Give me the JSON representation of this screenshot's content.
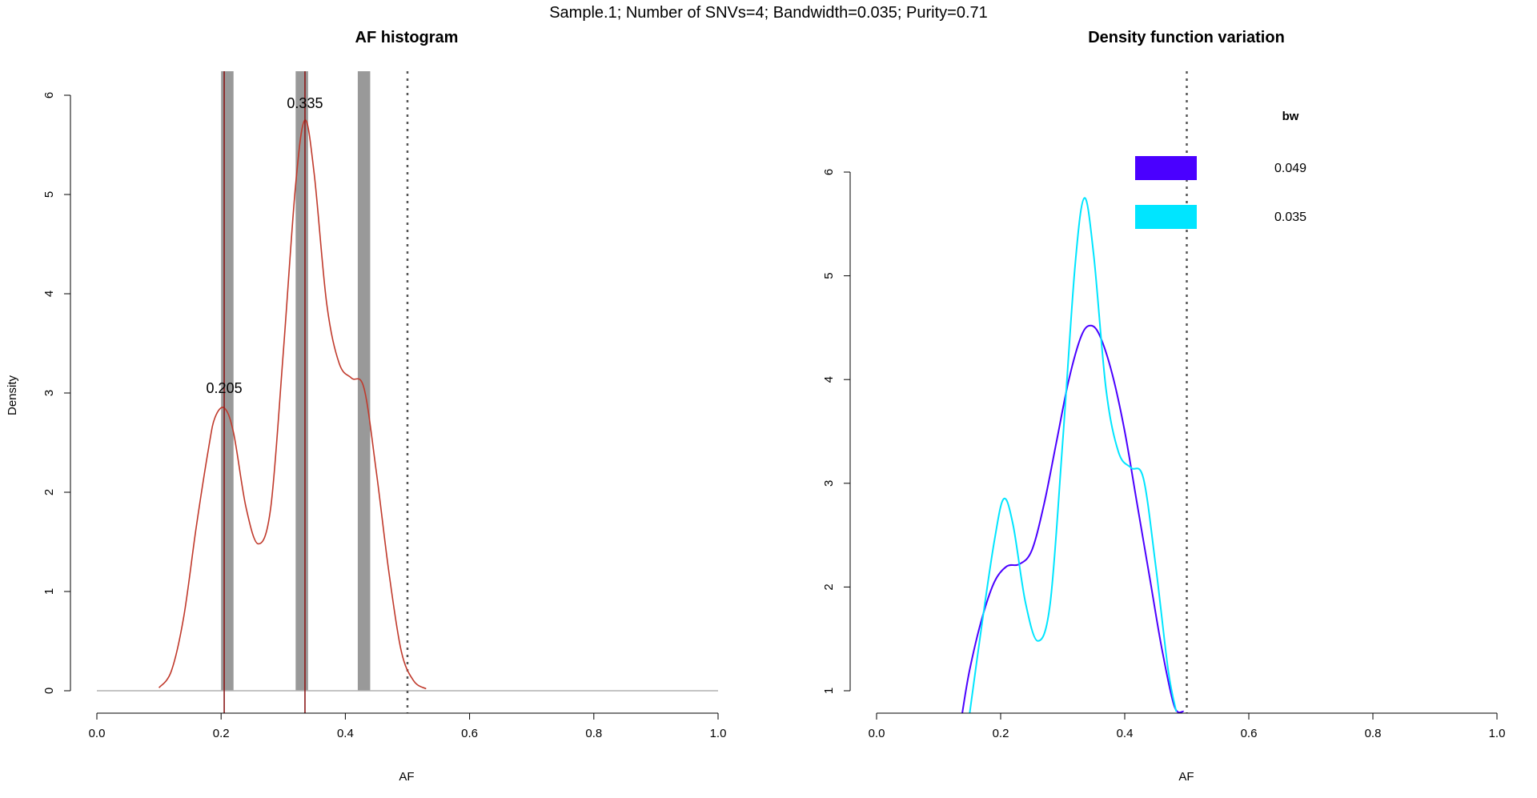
{
  "figure": {
    "suptitle": "Sample.1; Number of SNVs=4; Bandwidth=0.035; Purity=0.71"
  },
  "colors": {
    "background": "#ffffff",
    "axis": "#000000",
    "histogram_bar": "#999999",
    "density_left": "#c0392b",
    "peak_line": "#8b1a1a",
    "baseline": "#b0b0b0",
    "purity_line": "#555555",
    "bw_0049": "#4a00ff",
    "bw_0035": "#00e5ff"
  },
  "chart_data": [
    {
      "type": "bar",
      "panel": "left",
      "title": "AF histogram",
      "xlabel": "AF",
      "ylabel": "Density",
      "xlim": [
        0.0,
        1.0
      ],
      "ylim": [
        0,
        6
      ],
      "x_ticks": [
        "0.0",
        "0.2",
        "0.4",
        "0.6",
        "0.8",
        "1.0"
      ],
      "y_ticks": [
        "0",
        "1",
        "2",
        "3",
        "4",
        "5",
        "6"
      ],
      "histogram_bins": [
        {
          "start": 0.2,
          "end": 0.22
        },
        {
          "start": 0.32,
          "end": 0.34
        },
        {
          "start": 0.42,
          "end": 0.44
        }
      ],
      "density_curve": {
        "bandwidth": 0.035,
        "x": [
          0.1,
          0.12,
          0.14,
          0.16,
          0.18,
          0.19,
          0.205,
          0.22,
          0.24,
          0.26,
          0.28,
          0.3,
          0.32,
          0.335,
          0.35,
          0.37,
          0.39,
          0.41,
          0.43,
          0.45,
          0.47,
          0.49,
          0.51,
          0.53
        ],
        "y": [
          0.03,
          0.2,
          0.75,
          1.65,
          2.45,
          2.75,
          2.85,
          2.6,
          1.85,
          1.48,
          1.85,
          3.4,
          5.1,
          5.75,
          5.2,
          3.9,
          3.3,
          3.15,
          3.05,
          2.2,
          1.2,
          0.4,
          0.1,
          0.02
        ]
      },
      "peaks": [
        {
          "x": 0.205,
          "label": "0.205",
          "label_y": 3.0
        },
        {
          "x": 0.335,
          "label": "0.335",
          "label_y": 5.87
        }
      ],
      "purity_line_x": 0.5
    },
    {
      "type": "line",
      "panel": "right",
      "title": "Density function variation",
      "xlabel": "AF",
      "ylabel": "",
      "xlim": [
        0.0,
        1.0
      ],
      "ylim": [
        1,
        6
      ],
      "x_ticks": [
        "0.0",
        "0.2",
        "0.4",
        "0.6",
        "0.8",
        "1.0"
      ],
      "y_ticks": [
        "1",
        "2",
        "3",
        "4",
        "5",
        "6"
      ],
      "legend": {
        "title": "bw",
        "position": "top-right"
      },
      "purity_line_x": 0.5,
      "series": [
        {
          "name": "0.049",
          "color": "#4a00ff",
          "x": [
            0.138,
            0.15,
            0.17,
            0.19,
            0.21,
            0.23,
            0.25,
            0.27,
            0.29,
            0.31,
            0.33,
            0.345,
            0.36,
            0.38,
            0.4,
            0.42,
            0.44,
            0.46,
            0.48,
            0.495
          ],
          "y": [
            0.78,
            1.2,
            1.7,
            2.05,
            2.2,
            2.22,
            2.35,
            2.8,
            3.4,
            4.0,
            4.42,
            4.52,
            4.42,
            4.05,
            3.5,
            2.8,
            2.1,
            1.4,
            0.85,
            0.8
          ]
        },
        {
          "name": "0.035",
          "color": "#00e5ff",
          "x": [
            0.15,
            0.17,
            0.19,
            0.205,
            0.22,
            0.24,
            0.26,
            0.28,
            0.3,
            0.32,
            0.335,
            0.35,
            0.37,
            0.39,
            0.41,
            0.43,
            0.45,
            0.47,
            0.483
          ],
          "y": [
            0.78,
            1.65,
            2.45,
            2.85,
            2.6,
            1.85,
            1.48,
            1.85,
            3.4,
            5.1,
            5.75,
            5.2,
            3.9,
            3.3,
            3.15,
            3.05,
            2.2,
            1.2,
            0.8
          ]
        }
      ]
    }
  ]
}
